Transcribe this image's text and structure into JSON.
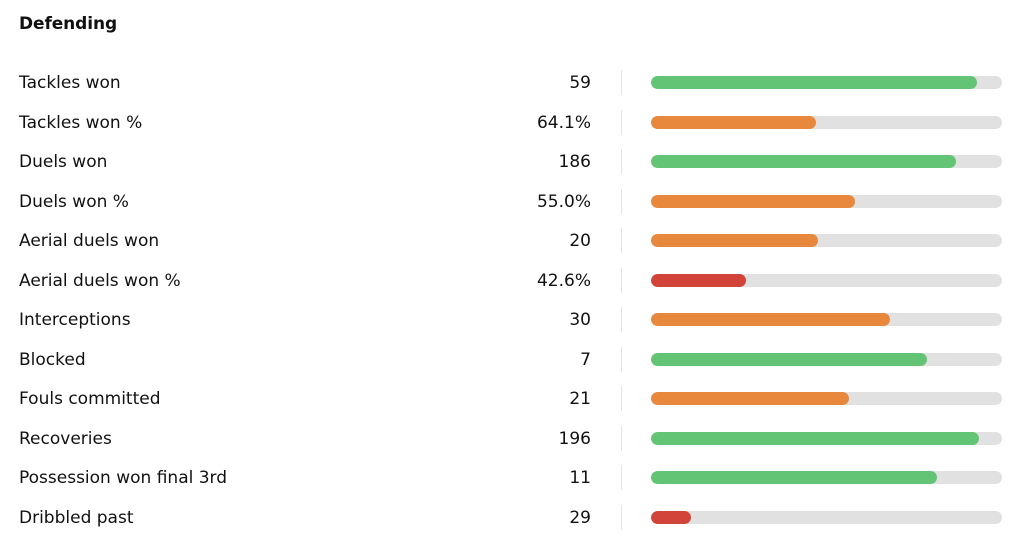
{
  "section": {
    "title": "Defending"
  },
  "colors": {
    "good": "#63c476",
    "average": "#e8883d",
    "poor": "#d2443a",
    "track": "#e1e1e1"
  },
  "stats": [
    {
      "label": "Tackles won",
      "value": "59",
      "level": 0.93,
      "rating": "good"
    },
    {
      "label": "Tackles won %",
      "value": "64.1%",
      "level": 0.47,
      "rating": "average"
    },
    {
      "label": "Duels won",
      "value": "186",
      "level": 0.87,
      "rating": "good"
    },
    {
      "label": "Duels won %",
      "value": "55.0%",
      "level": 0.58,
      "rating": "average"
    },
    {
      "label": "Aerial duels won",
      "value": "20",
      "level": 0.475,
      "rating": "average"
    },
    {
      "label": "Aerial duels won %",
      "value": "42.6%",
      "level": 0.27,
      "rating": "poor"
    },
    {
      "label": "Interceptions",
      "value": "30",
      "level": 0.68,
      "rating": "average"
    },
    {
      "label": "Blocked",
      "value": "7",
      "level": 0.785,
      "rating": "good"
    },
    {
      "label": "Fouls committed",
      "value": "21",
      "level": 0.565,
      "rating": "average"
    },
    {
      "label": "Recoveries",
      "value": "196",
      "level": 0.935,
      "rating": "good"
    },
    {
      "label": "Possession won final 3rd",
      "value": "11",
      "level": 0.815,
      "rating": "good"
    },
    {
      "label": "Dribbled past",
      "value": "29",
      "level": 0.115,
      "rating": "poor"
    }
  ]
}
